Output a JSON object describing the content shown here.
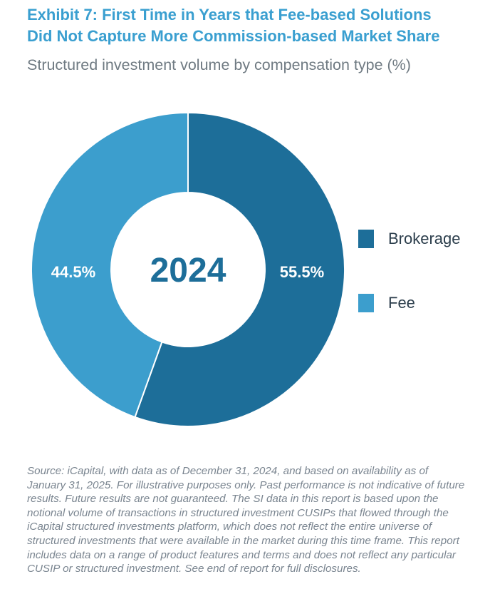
{
  "header": {
    "title_line1": "Exhibit 7: First Time in Years that Fee-based Solutions",
    "title_line2": "Did Not Capture More Commission-based Market Share",
    "subtitle": "Structured investment volume by compensation type (%)"
  },
  "chart_data": {
    "type": "pie",
    "variant": "donut",
    "title": "Exhibit 7: First Time in Years that Fee-based Solutions Did Not Capture More Commission-based Market Share",
    "subtitle": "Structured investment volume by compensation type (%)",
    "center_label": "2024",
    "categories": [
      "Brokerage",
      "Fee"
    ],
    "values": [
      55.5,
      44.5
    ],
    "labels": [
      "55.5%",
      "44.5%"
    ],
    "colors": [
      "#1d6e99",
      "#3c9ecd"
    ],
    "legend_position": "right"
  },
  "chart": {
    "center_label": "2024",
    "brokerage_label": "55.5%",
    "fee_label": "44.5%"
  },
  "legend": {
    "items": [
      {
        "label": "Brokerage",
        "color": "#1d6e99"
      },
      {
        "label": "Fee",
        "color": "#3c9ecd"
      }
    ]
  },
  "colors": {
    "title": "#3a9fd0",
    "brokerage": "#1d6e99",
    "fee": "#3c9ecd",
    "center_text": "#1d6e99"
  },
  "footer": {
    "source": "Source: iCapital, with data as of December 31, 2024, and based on availability as of January 31, 2025. For illustrative purposes only. Past performance is not indicative of future results. Future results are not guaranteed. The SI data in this report is based upon the notional volume of transactions in structured investment CUSIPs that flowed through the iCapital structured investments platform, which does not reflect the entire universe of structured investments that were available in the market during this time frame. This report includes data on a range of product features and terms and does not reflect any particular CUSIP or structured investment. See end of report for full disclosures."
  }
}
